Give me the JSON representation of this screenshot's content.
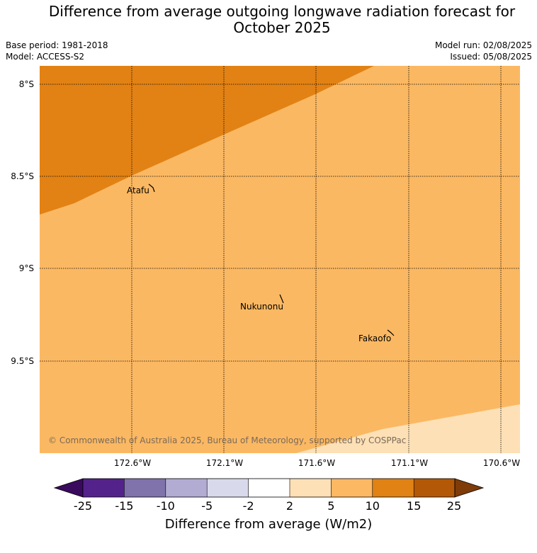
{
  "header": {
    "title_line1": "Difference from average outgoing longwave radiation forecast for",
    "title_line2": "October 2025",
    "base_period": "Base period: 1981-2018",
    "model": "Model: ACCESS-S2",
    "model_run": "Model run: 02/08/2025",
    "issued": "Issued: 05/08/2025"
  },
  "map": {
    "lon_labels": [
      "172.6°W",
      "172.1°W",
      "171.6°W",
      "171.1°W",
      "170.6°W"
    ],
    "lat_labels": [
      "8°S",
      "8.5°S",
      "9°S",
      "9.5°S"
    ],
    "places": [
      {
        "name": "Atafu"
      },
      {
        "name": "Nukunonu"
      },
      {
        "name": "Fakaofo"
      }
    ],
    "copyright": "© Commonwealth of Australia 2025, Bureau of Meteorology, supported by COSPPac",
    "colors": {
      "band_10_15": "#e28214",
      "band_5_10": "#fbb862",
      "band_2_5": "#fde0b6"
    }
  },
  "colorbar": {
    "label": "Difference from average (W/m2)",
    "ticks": [
      "-25",
      "-15",
      "-10",
      "-5",
      "-2",
      "2",
      "5",
      "10",
      "15",
      "25"
    ],
    "colors": [
      "#3a0a5e",
      "#54228b",
      "#8073ac",
      "#b2abd2",
      "#d8daeb",
      "#ffffff",
      "#fee0b6",
      "#fdb863",
      "#e08214",
      "#b35806",
      "#7f3b08"
    ]
  }
}
